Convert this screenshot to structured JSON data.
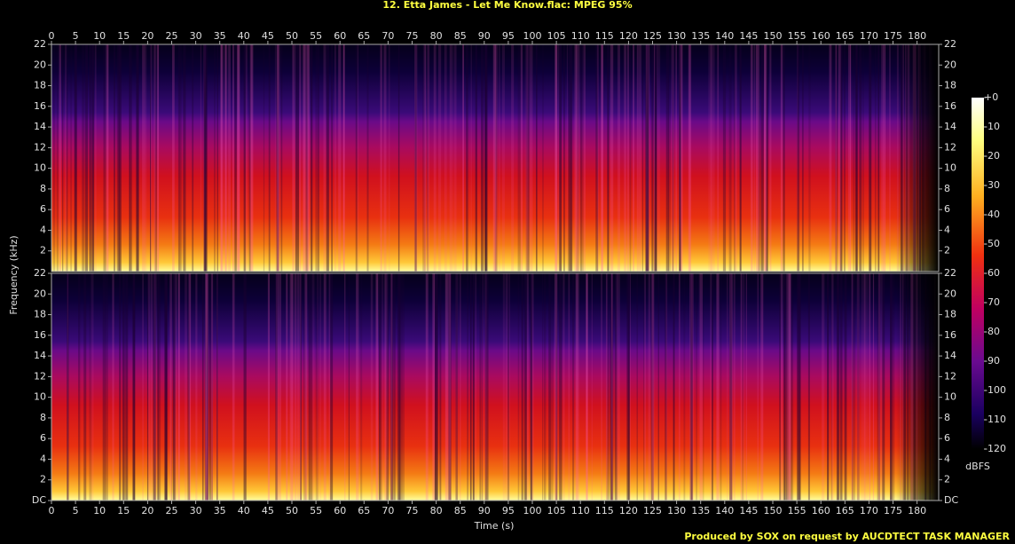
{
  "chart_data": {
    "type": "spectrogram",
    "title": "12. Etta James - Let Me Know.flac: MPEG 95%",
    "xlabel": "Time (s)",
    "ylabel": "Frequency (kHz)",
    "xlim": [
      0,
      184.5
    ],
    "xticks": [
      0,
      5,
      10,
      15,
      20,
      25,
      30,
      35,
      40,
      45,
      50,
      55,
      60,
      65,
      70,
      75,
      80,
      85,
      90,
      95,
      100,
      105,
      110,
      115,
      120,
      125,
      130,
      135,
      140,
      145,
      150,
      155,
      160,
      165,
      170,
      175,
      180
    ],
    "channels": [
      {
        "ylim": [
          0,
          22
        ],
        "yticks": [
          2,
          4,
          6,
          8,
          10,
          12,
          14,
          16,
          18,
          20,
          22
        ]
      },
      {
        "ylim": [
          0,
          22
        ],
        "yticks": [
          {
            "value": 0,
            "label": "DC"
          },
          2,
          4,
          6,
          8,
          10,
          12,
          14,
          16,
          18,
          20,
          22
        ]
      }
    ],
    "colorbar": {
      "label": "dBFS",
      "lim": [
        -120,
        0
      ],
      "ticks": [
        {
          "value": 0,
          "label": "+0"
        },
        -10,
        -20,
        -30,
        -40,
        -50,
        -60,
        -70,
        -80,
        -90,
        -100,
        -110,
        -120
      ]
    }
  },
  "footer": "Produced by SOX on request by AUCDTECT TASK MANAGER"
}
